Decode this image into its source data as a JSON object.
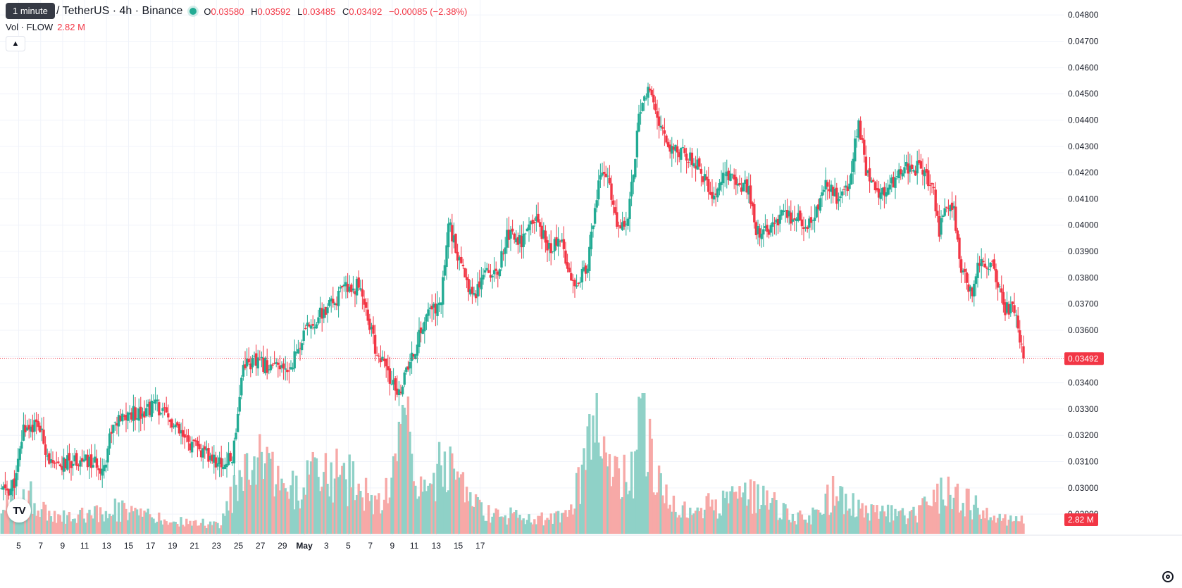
{
  "tooltip": "1 minute",
  "symbol_title": "/ TetherUS · 4h · Binance",
  "ohlc": {
    "o_label": "O",
    "o": "0.03580",
    "h_label": "H",
    "h": "0.03592",
    "l_label": "L",
    "l": "0.03485",
    "c_label": "C",
    "c": "0.03492",
    "change": "−0.00085 (−2.38%)"
  },
  "volume": {
    "label": "Vol · FLOW",
    "value": "2.82 M"
  },
  "logo_text": "TV",
  "colors": {
    "up": "#22ab94",
    "down": "#f23645",
    "up_vol": "#8fd1c7",
    "down_vol": "#f7a9a7",
    "grid": "#f0f3fa",
    "text": "#131722"
  },
  "chart_data": {
    "type": "candlestick",
    "symbol": "FLOW/USDT",
    "interval": "4h",
    "exchange": "Binance",
    "ylim": [
      0.0282,
      0.0483
    ],
    "y_ticks": [
      0.029,
      0.03,
      0.031,
      0.032,
      0.033,
      0.034,
      0.035,
      0.036,
      0.037,
      0.038,
      0.039,
      0.04,
      0.041,
      0.042,
      0.043,
      0.044,
      0.045,
      0.046,
      0.047,
      0.048
    ],
    "x_ticks": [
      "5",
      "7",
      "9",
      "11",
      "13",
      "15",
      "17",
      "19",
      "21",
      "23",
      "25",
      "27",
      "29",
      "May",
      "3",
      "5",
      "7",
      "9",
      "11",
      "13",
      "15",
      "17"
    ],
    "last_price": "0.03492",
    "last_volume": "2.82 M",
    "close_path": [
      {
        "bar": 0,
        "close": 0.0299
      },
      {
        "bar": 5,
        "close": 0.02995
      },
      {
        "bar": 8,
        "close": 0.0304
      },
      {
        "bar": 12,
        "close": 0.0323
      },
      {
        "bar": 20,
        "close": 0.0324
      },
      {
        "bar": 28,
        "close": 0.0307
      },
      {
        "bar": 40,
        "close": 0.0311
      },
      {
        "bar": 56,
        "close": 0.0308
      },
      {
        "bar": 60,
        "close": 0.0323
      },
      {
        "bar": 70,
        "close": 0.0328
      },
      {
        "bar": 80,
        "close": 0.033
      },
      {
        "bar": 84,
        "close": 0.0332
      },
      {
        "bar": 92,
        "close": 0.0325
      },
      {
        "bar": 100,
        "close": 0.0318
      },
      {
        "bar": 110,
        "close": 0.0313
      },
      {
        "bar": 120,
        "close": 0.0309
      },
      {
        "bar": 126,
        "close": 0.0311
      },
      {
        "bar": 132,
        "close": 0.0348
      },
      {
        "bar": 144,
        "close": 0.0347
      },
      {
        "bar": 156,
        "close": 0.0344
      },
      {
        "bar": 168,
        "close": 0.0362
      },
      {
        "bar": 178,
        "close": 0.0368
      },
      {
        "bar": 188,
        "close": 0.0376
      },
      {
        "bar": 196,
        "close": 0.0377
      },
      {
        "bar": 204,
        "close": 0.0353
      },
      {
        "bar": 210,
        "close": 0.0345
      },
      {
        "bar": 216,
        "close": 0.0335
      },
      {
        "bar": 224,
        "close": 0.0349
      },
      {
        "bar": 232,
        "close": 0.0366
      },
      {
        "bar": 240,
        "close": 0.037
      },
      {
        "bar": 244,
        "close": 0.0402
      },
      {
        "bar": 250,
        "close": 0.0385
      },
      {
        "bar": 258,
        "close": 0.0373
      },
      {
        "bar": 264,
        "close": 0.0385
      },
      {
        "bar": 270,
        "close": 0.038
      },
      {
        "bar": 276,
        "close": 0.0397
      },
      {
        "bar": 284,
        "close": 0.0394
      },
      {
        "bar": 292,
        "close": 0.0402
      },
      {
        "bar": 298,
        "close": 0.0392
      },
      {
        "bar": 306,
        "close": 0.0393
      },
      {
        "bar": 312,
        "close": 0.0379
      },
      {
        "bar": 320,
        "close": 0.0383
      },
      {
        "bar": 326,
        "close": 0.0418
      },
      {
        "bar": 330,
        "close": 0.042
      },
      {
        "bar": 336,
        "close": 0.0399
      },
      {
        "bar": 342,
        "close": 0.0404
      },
      {
        "bar": 348,
        "close": 0.044
      },
      {
        "bar": 354,
        "close": 0.0453
      },
      {
        "bar": 358,
        "close": 0.0438
      },
      {
        "bar": 364,
        "close": 0.0431
      },
      {
        "bar": 372,
        "close": 0.0428
      },
      {
        "bar": 380,
        "close": 0.0423
      },
      {
        "bar": 388,
        "close": 0.041
      },
      {
        "bar": 394,
        "close": 0.0419
      },
      {
        "bar": 400,
        "close": 0.0417
      },
      {
        "bar": 408,
        "close": 0.0414
      },
      {
        "bar": 412,
        "close": 0.0397
      },
      {
        "bar": 418,
        "close": 0.0397
      },
      {
        "bar": 426,
        "close": 0.0403
      },
      {
        "bar": 434,
        "close": 0.0402
      },
      {
        "bar": 442,
        "close": 0.0401
      },
      {
        "bar": 450,
        "close": 0.0416
      },
      {
        "bar": 456,
        "close": 0.041
      },
      {
        "bar": 462,
        "close": 0.0414
      },
      {
        "bar": 468,
        "close": 0.0438
      },
      {
        "bar": 472,
        "close": 0.0421
      },
      {
        "bar": 478,
        "close": 0.0412
      },
      {
        "bar": 486,
        "close": 0.0416
      },
      {
        "bar": 492,
        "close": 0.0421
      },
      {
        "bar": 500,
        "close": 0.0422
      },
      {
        "bar": 508,
        "close": 0.0416
      },
      {
        "bar": 512,
        "close": 0.0398
      },
      {
        "bar": 516,
        "close": 0.0408
      },
      {
        "bar": 520,
        "close": 0.0405
      },
      {
        "bar": 524,
        "close": 0.0382
      },
      {
        "bar": 530,
        "close": 0.0375
      },
      {
        "bar": 534,
        "close": 0.0387
      },
      {
        "bar": 540,
        "close": 0.0386
      },
      {
        "bar": 548,
        "close": 0.0368
      },
      {
        "bar": 552,
        "close": 0.0368
      },
      {
        "bar": 556,
        "close": 0.0358
      },
      {
        "bar": 558,
        "close": 0.03492
      }
    ],
    "volume_path": [
      {
        "bar": 0,
        "volume": 0.22
      },
      {
        "bar": 14,
        "volume": 0.3
      },
      {
        "bar": 30,
        "volume": 0.12
      },
      {
        "bar": 60,
        "volume": 0.2
      },
      {
        "bar": 90,
        "volume": 0.1
      },
      {
        "bar": 120,
        "volume": 0.07
      },
      {
        "bar": 131,
        "volume": 0.52
      },
      {
        "bar": 138,
        "volume": 0.64
      },
      {
        "bar": 144,
        "volume": 0.48
      },
      {
        "bar": 160,
        "volume": 0.35
      },
      {
        "bar": 176,
        "volume": 0.5
      },
      {
        "bar": 190,
        "volume": 0.42
      },
      {
        "bar": 206,
        "volume": 0.22
      },
      {
        "bar": 222,
        "volume": 0.92
      },
      {
        "bar": 230,
        "volume": 0.26
      },
      {
        "bar": 243,
        "volume": 0.6
      },
      {
        "bar": 262,
        "volume": 0.17
      },
      {
        "bar": 290,
        "volume": 0.12
      },
      {
        "bar": 310,
        "volume": 0.15
      },
      {
        "bar": 326,
        "volume": 0.85
      },
      {
        "bar": 333,
        "volume": 0.4
      },
      {
        "bar": 346,
        "volume": 0.5
      },
      {
        "bar": 350,
        "volume": 1.0
      },
      {
        "bar": 356,
        "volume": 0.45
      },
      {
        "bar": 370,
        "volume": 0.16
      },
      {
        "bar": 410,
        "volume": 0.3
      },
      {
        "bar": 440,
        "volume": 0.1
      },
      {
        "bar": 456,
        "volume": 0.35
      },
      {
        "bar": 470,
        "volume": 0.17
      },
      {
        "bar": 498,
        "volume": 0.15
      },
      {
        "bar": 518,
        "volume": 0.35
      },
      {
        "bar": 540,
        "volume": 0.12
      },
      {
        "bar": 558,
        "volume": 0.1
      }
    ],
    "seed": 11
  }
}
